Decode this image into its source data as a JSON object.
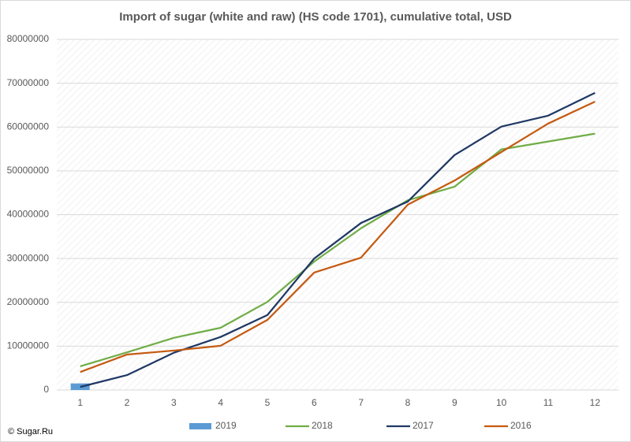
{
  "chart_data": {
    "type": "line",
    "title": "Import of sugar (white and raw) (HS code 1701), cumulative total, USD",
    "source": "© Sugar.Ru",
    "categories": [
      "1",
      "2",
      "3",
      "4",
      "5",
      "6",
      "7",
      "8",
      "9",
      "10",
      "11",
      "12"
    ],
    "ylim": [
      0,
      80000000
    ],
    "yticks": [
      0,
      10000000,
      20000000,
      30000000,
      40000000,
      50000000,
      60000000,
      70000000,
      80000000
    ],
    "grid": true,
    "legend": "bottom",
    "series": [
      {
        "name": "2019",
        "type": "bar",
        "color": "#5b9bd5",
        "values": [
          1500000,
          null,
          null,
          null,
          null,
          null,
          null,
          null,
          null,
          null,
          null,
          null
        ]
      },
      {
        "name": "2018",
        "type": "line",
        "color": "#70ad47",
        "values": [
          5400000,
          8600000,
          11900000,
          14200000,
          20100000,
          29300000,
          36900000,
          43300000,
          46400000,
          54900000,
          56700000,
          58500000
        ]
      },
      {
        "name": "2017",
        "type": "line",
        "color": "#203864",
        "values": [
          700000,
          3400000,
          8500000,
          12100000,
          17100000,
          30000000,
          38100000,
          43000000,
          53600000,
          60100000,
          62600000,
          67800000
        ]
      },
      {
        "name": "2016",
        "type": "line",
        "color": "#c55a11",
        "values": [
          4100000,
          8100000,
          9000000,
          10100000,
          16000000,
          26800000,
          30200000,
          42300000,
          47800000,
          54300000,
          60800000,
          65800000
        ]
      }
    ]
  }
}
